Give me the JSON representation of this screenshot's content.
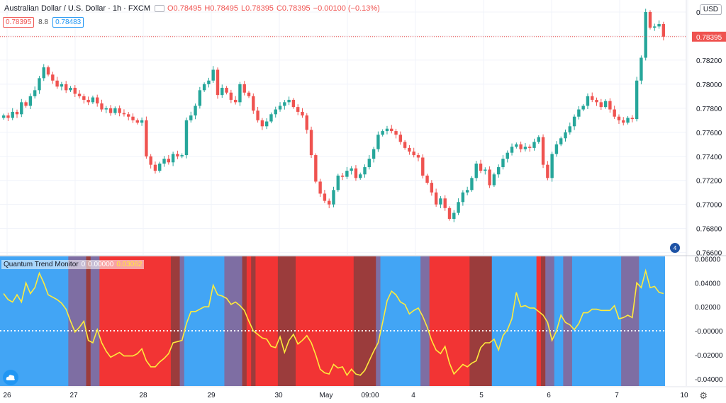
{
  "header": {
    "symbol": "Australian Dollar / U.S. Dollar · 1h · FXCM",
    "open": "O0.78495",
    "high": "H0.78495",
    "low": "L0.78395",
    "close": "C0.78395",
    "change": "−0.00100 (−0.13%)"
  },
  "quote": {
    "bid": "0.78395",
    "spread": "8.8",
    "ask": "0.78483"
  },
  "currency_label": "USD",
  "last_price_label": "0.78395",
  "alert_count": "4",
  "indicator": {
    "name": "Quantum Trend Monitor",
    "param": "0",
    "value1": "0.00000",
    "value2": "0.03062"
  },
  "colors": {
    "up": "#26a69a",
    "down": "#ef5350",
    "bg_blue": "#42a5f5",
    "bg_red": "#f23434",
    "bg_purple": "#7e6ea3",
    "bg_darkred": "#9b3c3c",
    "line": "#ffeb3b"
  },
  "chart_data": {
    "type": "candlestick",
    "price_axis": {
      "ticks": [
        "0.78600",
        "0.78400",
        "0.78200",
        "0.78000",
        "0.77800",
        "0.77600",
        "0.77400",
        "0.77200",
        "0.77000",
        "0.76800",
        "0.76600"
      ],
      "ylim": [
        0.7658,
        0.787
      ]
    },
    "osc_axis": {
      "ticks": [
        "0.06000",
        "0.04000",
        "0.02000",
        "-0.00000",
        "-0.02000",
        "-0.04000"
      ],
      "ylim": [
        -0.046,
        0.062
      ]
    },
    "x_ticks": [
      "26",
      "27",
      "28",
      "29",
      "30",
      "May",
      "09:00",
      "4",
      "5",
      "6",
      "7",
      "10"
    ],
    "price_close": [
      0.7774,
      0.7772,
      0.7777,
      0.7775,
      0.7785,
      0.7782,
      0.779,
      0.7795,
      0.7805,
      0.7814,
      0.7808,
      0.7803,
      0.7798,
      0.78,
      0.7795,
      0.7797,
      0.7792,
      0.779,
      0.7787,
      0.7785,
      0.7789,
      0.7784,
      0.7779,
      0.778,
      0.7776,
      0.778,
      0.7776,
      0.7775,
      0.7773,
      0.777,
      0.7768,
      0.777,
      0.774,
      0.7733,
      0.7728,
      0.7734,
      0.7738,
      0.7735,
      0.7742,
      0.774,
      0.7741,
      0.777,
      0.7774,
      0.7782,
      0.7795,
      0.78,
      0.7803,
      0.7812,
      0.7791,
      0.7797,
      0.7793,
      0.7787,
      0.7785,
      0.78,
      0.7793,
      0.779,
      0.7778,
      0.777,
      0.7765,
      0.7769,
      0.7775,
      0.7779,
      0.7782,
      0.7785,
      0.7787,
      0.7781,
      0.7777,
      0.7774,
      0.7762,
      0.7741,
      0.7719,
      0.7709,
      0.7703,
      0.77,
      0.7712,
      0.7724,
      0.7723,
      0.7728,
      0.773,
      0.7722,
      0.7725,
      0.7731,
      0.7738,
      0.7746,
      0.7758,
      0.7761,
      0.7763,
      0.7761,
      0.7758,
      0.7752,
      0.7747,
      0.7744,
      0.7741,
      0.7739,
      0.7724,
      0.7718,
      0.771,
      0.77,
      0.7705,
      0.7697,
      0.7688,
      0.7693,
      0.7702,
      0.771,
      0.7712,
      0.7722,
      0.7734,
      0.7728,
      0.7729,
      0.7716,
      0.7725,
      0.7731,
      0.7738,
      0.7743,
      0.7748,
      0.775,
      0.7746,
      0.7748,
      0.7747,
      0.7752,
      0.7756,
      0.7733,
      0.7722,
      0.7742,
      0.775,
      0.7755,
      0.776,
      0.7765,
      0.7773,
      0.7779,
      0.7782,
      0.779,
      0.7787,
      0.7785,
      0.7781,
      0.7786,
      0.7779,
      0.7773,
      0.777,
      0.7768,
      0.7772,
      0.7771,
      0.7803,
      0.7822,
      0.786,
      0.7847,
      0.7848,
      0.785,
      0.78395
    ],
    "osc_line": [
      0.031,
      0.026,
      0.024,
      0.03,
      0.024,
      0.04,
      0.031,
      0.036,
      0.048,
      0.04,
      0.03,
      0.028,
      0.026,
      0.023,
      0.018,
      0.008,
      -0.001,
      0.003,
      0.008,
      -0.008,
      -0.01,
      0.001,
      -0.01,
      -0.017,
      -0.022,
      -0.02,
      -0.018,
      -0.021,
      -0.021,
      -0.021,
      -0.019,
      -0.015,
      -0.025,
      -0.03,
      -0.03,
      -0.026,
      -0.023,
      -0.019,
      -0.01,
      -0.009,
      -0.008,
      0.006,
      0.016,
      0.016,
      0.018,
      0.02,
      0.02,
      0.038,
      0.03,
      0.029,
      0.027,
      0.022,
      0.024,
      0.021,
      0.017,
      0.008,
      0.0,
      -0.003,
      -0.006,
      -0.007,
      -0.013,
      -0.014,
      -0.005,
      -0.018,
      -0.008,
      -0.003,
      -0.011,
      -0.008,
      -0.004,
      -0.01,
      -0.02,
      -0.032,
      -0.035,
      -0.036,
      -0.028,
      -0.031,
      -0.03,
      -0.037,
      -0.032,
      -0.036,
      -0.037,
      -0.033,
      -0.025,
      -0.017,
      -0.01,
      0.007,
      0.025,
      0.033,
      0.03,
      0.024,
      0.022,
      0.014,
      0.017,
      0.019,
      0.012,
      0.003,
      -0.008,
      -0.016,
      -0.019,
      -0.013,
      -0.027,
      -0.036,
      -0.032,
      -0.028,
      -0.03,
      -0.027,
      -0.025,
      -0.014,
      -0.01,
      -0.01,
      -0.007,
      -0.016,
      -0.004,
      0.001,
      0.01,
      0.032,
      0.02,
      0.021,
      0.019,
      0.019,
      0.016,
      0.013,
      0.007,
      -0.008,
      0.0,
      0.013,
      0.007,
      0.005,
      0.001,
      0.006,
      0.015,
      0.015,
      0.018,
      0.018,
      0.017,
      0.017,
      0.017,
      0.021,
      0.01,
      0.011,
      0.013,
      0.011,
      0.04,
      0.036,
      0.05,
      0.036,
      0.037,
      0.032,
      0.031
    ],
    "regimes": [
      {
        "from": 0,
        "to": 15,
        "state": "blue"
      },
      {
        "from": 15,
        "to": 19,
        "state": "purple"
      },
      {
        "from": 19,
        "to": 20,
        "state": "darkred"
      },
      {
        "from": 20,
        "to": 22,
        "state": "purple"
      },
      {
        "from": 22,
        "to": 38,
        "state": "red"
      },
      {
        "from": 38,
        "to": 40,
        "state": "darkred"
      },
      {
        "from": 40,
        "to": 41,
        "state": "purple"
      },
      {
        "from": 41,
        "to": 50,
        "state": "blue"
      },
      {
        "from": 50,
        "to": 54,
        "state": "purple"
      },
      {
        "from": 54,
        "to": 55,
        "state": "darkred"
      },
      {
        "from": 55,
        "to": 56,
        "state": "red"
      },
      {
        "from": 56,
        "to": 57,
        "state": "darkred"
      },
      {
        "from": 57,
        "to": 62,
        "state": "red"
      },
      {
        "from": 62,
        "to": 66,
        "state": "darkred"
      },
      {
        "from": 66,
        "to": 79,
        "state": "red"
      },
      {
        "from": 79,
        "to": 84,
        "state": "darkred"
      },
      {
        "from": 84,
        "to": 85,
        "state": "purple"
      },
      {
        "from": 85,
        "to": 94,
        "state": "blue"
      },
      {
        "from": 94,
        "to": 96,
        "state": "purple"
      },
      {
        "from": 96,
        "to": 105,
        "state": "red"
      },
      {
        "from": 105,
        "to": 110,
        "state": "darkred"
      },
      {
        "from": 110,
        "to": 120,
        "state": "blue"
      },
      {
        "from": 120,
        "to": 121,
        "state": "red"
      },
      {
        "from": 121,
        "to": 122,
        "state": "darkred"
      },
      {
        "from": 122,
        "to": 124,
        "state": "purple"
      },
      {
        "from": 124,
        "to": 126,
        "state": "blue"
      },
      {
        "from": 126,
        "to": 128,
        "state": "purple"
      },
      {
        "from": 128,
        "to": 139,
        "state": "blue"
      },
      {
        "from": 139,
        "to": 143,
        "state": "purple"
      },
      {
        "from": 143,
        "to": 148,
        "state": "blue"
      }
    ]
  }
}
